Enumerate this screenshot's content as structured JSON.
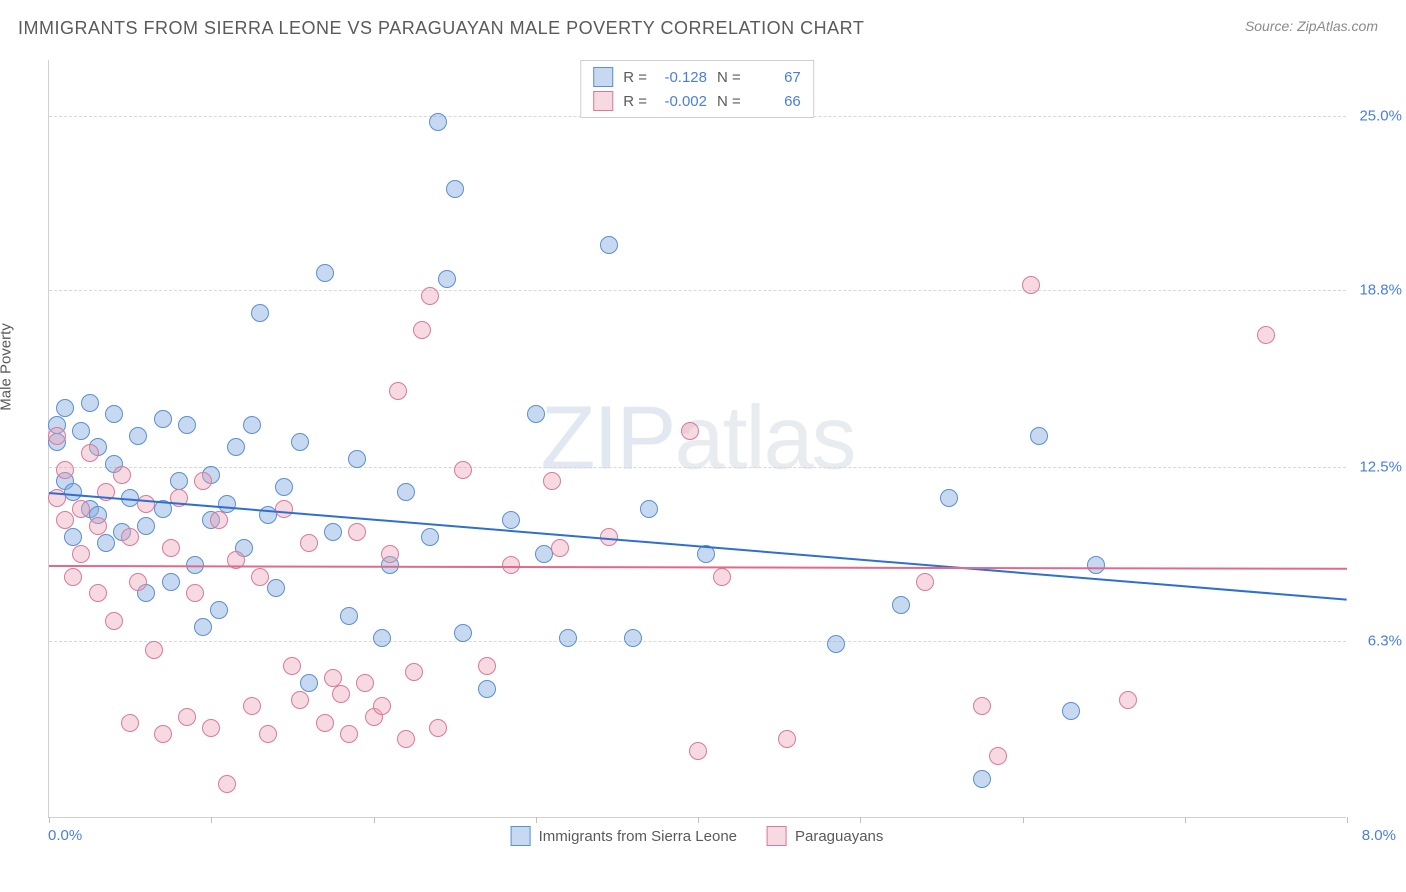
{
  "header": {
    "title": "IMMIGRANTS FROM SIERRA LEONE VS PARAGUAYAN MALE POVERTY CORRELATION CHART",
    "source": "Source: ZipAtlas.com"
  },
  "y_axis_label": "Male Poverty",
  "watermark": {
    "bold": "ZIP",
    "light": "atlas"
  },
  "chart": {
    "type": "scatter",
    "x_domain": [
      0.0,
      8.0
    ],
    "y_domain": [
      0.0,
      27.0
    ],
    "x_ticks": [
      0.0,
      1.0,
      2.0,
      3.0,
      4.0,
      5.0,
      6.0,
      7.0,
      8.0
    ],
    "x_left_label": "0.0%",
    "x_right_label": "8.0%",
    "y_gridlines": [
      6.3,
      12.5,
      18.8,
      25.0
    ],
    "y_tick_labels": [
      "6.3%",
      "12.5%",
      "18.8%",
      "25.0%"
    ],
    "background_color": "#ffffff",
    "grid_color": "#d8d8d8",
    "axis_color": "#d0d0d0",
    "marker_radius": 9,
    "series": [
      {
        "name": "Immigrants from Sierra Leone",
        "fill": "rgba(130,170,225,0.45)",
        "stroke": "#5a8fd0",
        "trend": {
          "y_at_x0": 11.6,
          "y_at_xmax": 7.8,
          "color": "#2f6fd0",
          "width": 2
        },
        "R": "-0.128",
        "N": "67",
        "points": [
          [
            0.05,
            14.0
          ],
          [
            0.05,
            13.4
          ],
          [
            0.1,
            14.6
          ],
          [
            0.1,
            12.0
          ],
          [
            0.15,
            11.6
          ],
          [
            0.15,
            10.0
          ],
          [
            0.2,
            13.8
          ],
          [
            0.25,
            14.8
          ],
          [
            0.25,
            11.0
          ],
          [
            0.3,
            13.2
          ],
          [
            0.3,
            10.8
          ],
          [
            0.35,
            9.8
          ],
          [
            0.4,
            12.6
          ],
          [
            0.4,
            14.4
          ],
          [
            0.45,
            10.2
          ],
          [
            0.5,
            11.4
          ],
          [
            0.55,
            13.6
          ],
          [
            0.6,
            10.4
          ],
          [
            0.6,
            8.0
          ],
          [
            0.7,
            14.2
          ],
          [
            0.7,
            11.0
          ],
          [
            0.75,
            8.4
          ],
          [
            0.8,
            12.0
          ],
          [
            0.85,
            14.0
          ],
          [
            0.9,
            9.0
          ],
          [
            0.95,
            6.8
          ],
          [
            1.0,
            12.2
          ],
          [
            1.0,
            10.6
          ],
          [
            1.05,
            7.4
          ],
          [
            1.1,
            11.2
          ],
          [
            1.15,
            13.2
          ],
          [
            1.2,
            9.6
          ],
          [
            1.25,
            14.0
          ],
          [
            1.3,
            18.0
          ],
          [
            1.35,
            10.8
          ],
          [
            1.4,
            8.2
          ],
          [
            1.45,
            11.8
          ],
          [
            1.55,
            13.4
          ],
          [
            1.6,
            4.8
          ],
          [
            1.7,
            19.4
          ],
          [
            1.75,
            10.2
          ],
          [
            1.85,
            7.2
          ],
          [
            1.9,
            12.8
          ],
          [
            2.05,
            6.4
          ],
          [
            2.1,
            9.0
          ],
          [
            2.2,
            11.6
          ],
          [
            2.35,
            10.0
          ],
          [
            2.4,
            24.8
          ],
          [
            2.45,
            19.2
          ],
          [
            2.5,
            22.4
          ],
          [
            2.55,
            6.6
          ],
          [
            2.7,
            4.6
          ],
          [
            2.85,
            10.6
          ],
          [
            3.0,
            14.4
          ],
          [
            3.05,
            9.4
          ],
          [
            3.2,
            6.4
          ],
          [
            3.45,
            20.4
          ],
          [
            3.6,
            6.4
          ],
          [
            3.7,
            11.0
          ],
          [
            4.05,
            9.4
          ],
          [
            4.85,
            6.2
          ],
          [
            5.25,
            7.6
          ],
          [
            5.55,
            11.4
          ],
          [
            5.75,
            1.4
          ],
          [
            6.1,
            13.6
          ],
          [
            6.3,
            3.8
          ],
          [
            6.45,
            9.0
          ]
        ]
      },
      {
        "name": "Paraguayans",
        "fill": "rgba(235,160,180,0.40)",
        "stroke": "#d97a9a",
        "trend": {
          "y_at_x0": 9.0,
          "y_at_xmax": 8.9,
          "color": "#e06a8a",
          "width": 2
        },
        "R": "-0.002",
        "N": "66",
        "points": [
          [
            0.05,
            13.6
          ],
          [
            0.05,
            11.4
          ],
          [
            0.1,
            10.6
          ],
          [
            0.1,
            12.4
          ],
          [
            0.15,
            8.6
          ],
          [
            0.2,
            11.0
          ],
          [
            0.2,
            9.4
          ],
          [
            0.25,
            13.0
          ],
          [
            0.3,
            8.0
          ],
          [
            0.3,
            10.4
          ],
          [
            0.35,
            11.6
          ],
          [
            0.4,
            7.0
          ],
          [
            0.45,
            12.2
          ],
          [
            0.5,
            10.0
          ],
          [
            0.5,
            3.4
          ],
          [
            0.55,
            8.4
          ],
          [
            0.6,
            11.2
          ],
          [
            0.65,
            6.0
          ],
          [
            0.7,
            3.0
          ],
          [
            0.75,
            9.6
          ],
          [
            0.8,
            11.4
          ],
          [
            0.85,
            3.6
          ],
          [
            0.9,
            8.0
          ],
          [
            0.95,
            12.0
          ],
          [
            1.0,
            3.2
          ],
          [
            1.05,
            10.6
          ],
          [
            1.1,
            1.2
          ],
          [
            1.15,
            9.2
          ],
          [
            1.25,
            4.0
          ],
          [
            1.3,
            8.6
          ],
          [
            1.35,
            3.0
          ],
          [
            1.45,
            11.0
          ],
          [
            1.5,
            5.4
          ],
          [
            1.55,
            4.2
          ],
          [
            1.6,
            9.8
          ],
          [
            1.7,
            3.4
          ],
          [
            1.75,
            5.0
          ],
          [
            1.8,
            4.4
          ],
          [
            1.85,
            3.0
          ],
          [
            1.9,
            10.2
          ],
          [
            1.95,
            4.8
          ],
          [
            2.0,
            3.6
          ],
          [
            2.05,
            4.0
          ],
          [
            2.1,
            9.4
          ],
          [
            2.15,
            15.2
          ],
          [
            2.2,
            2.8
          ],
          [
            2.25,
            5.2
          ],
          [
            2.3,
            17.4
          ],
          [
            2.35,
            18.6
          ],
          [
            2.4,
            3.2
          ],
          [
            2.55,
            12.4
          ],
          [
            2.7,
            5.4
          ],
          [
            2.85,
            9.0
          ],
          [
            3.1,
            12.0
          ],
          [
            3.15,
            9.6
          ],
          [
            3.45,
            10.0
          ],
          [
            3.95,
            13.8
          ],
          [
            4.0,
            2.4
          ],
          [
            4.15,
            8.6
          ],
          [
            4.55,
            2.8
          ],
          [
            5.4,
            8.4
          ],
          [
            5.75,
            4.0
          ],
          [
            5.85,
            2.2
          ],
          [
            6.05,
            19.0
          ],
          [
            6.65,
            4.2
          ],
          [
            7.5,
            17.2
          ]
        ]
      }
    ]
  },
  "stats_box": {
    "rows": [
      {
        "swatch_fill": "rgba(130,170,225,0.45)",
        "swatch_stroke": "#5a8fd0",
        "R": "-0.128",
        "N": "67"
      },
      {
        "swatch_fill": "rgba(235,160,180,0.40)",
        "swatch_stroke": "#d97a9a",
        "R": "-0.002",
        "N": "66"
      }
    ],
    "labels": {
      "R": "R =",
      "N": "N ="
    }
  },
  "bottom_legend": [
    {
      "swatch_fill": "rgba(130,170,225,0.45)",
      "swatch_stroke": "#5a8fd0",
      "label": "Immigrants from Sierra Leone"
    },
    {
      "swatch_fill": "rgba(235,160,180,0.40)",
      "swatch_stroke": "#d97a9a",
      "label": "Paraguayans"
    }
  ]
}
